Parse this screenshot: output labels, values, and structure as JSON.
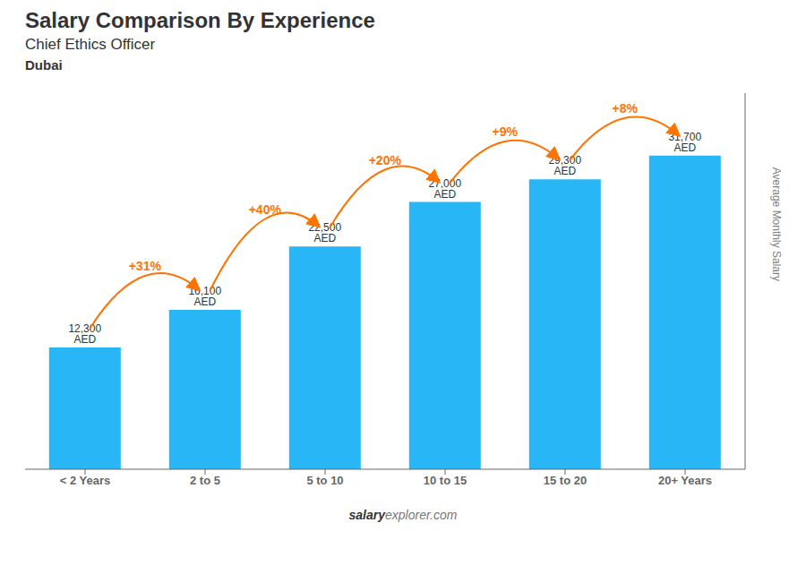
{
  "chart_data": {
    "type": "bar",
    "title": "Salary Comparison By Experience",
    "subtitle": "Chief Ethics Officer",
    "city": "Dubai",
    "categories": [
      "< 2 Years",
      "2 to 5",
      "5 to 10",
      "10 to 15",
      "15 to 20",
      "20+ Years"
    ],
    "values": [
      12300,
      16100,
      22500,
      27000,
      29300,
      31700
    ],
    "value_labels": [
      "12,300 AED",
      "16,100 AED",
      "22,500 AED",
      "27,000 AED",
      "29,300 AED",
      "31,700 AED"
    ],
    "data_labels": true,
    "color": "#29b6f6",
    "ylim": [
      0,
      38000
    ],
    "ylabel": "Average Monthly Salary",
    "tick_labels": "x",
    "grid": false,
    "annotations": [
      {
        "text": "+31%",
        "from": "< 2 Years",
        "to": "2 to 5"
      },
      {
        "text": "+40%",
        "from": "2 to 5",
        "to": "5 to 10"
      },
      {
        "text": "+20%",
        "from": "5 to 10",
        "to": "10 to 15"
      },
      {
        "text": "+9%",
        "from": "10 to 15",
        "to": "15 to 20"
      },
      {
        "text": "+8%",
        "from": "15 to 20",
        "to": "20+ Years"
      }
    ],
    "footer": [
      "salary",
      "explorer.com"
    ]
  }
}
